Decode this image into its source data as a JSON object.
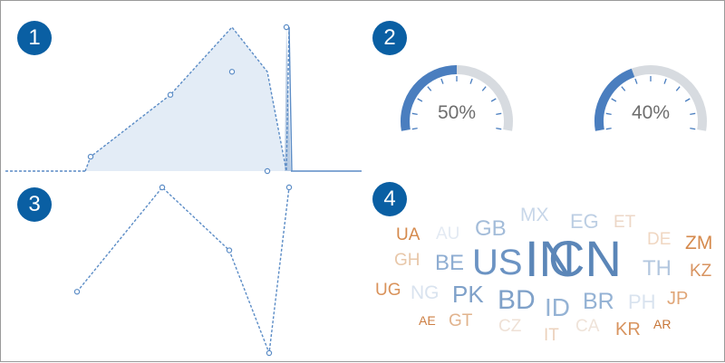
{
  "panels": [
    {
      "badge": "1"
    },
    {
      "badge": "2"
    },
    {
      "badge": "3"
    },
    {
      "badge": "4"
    }
  ],
  "chart_data": [
    {
      "type": "area",
      "series": [
        {
          "values": [
            0,
            0,
            0.1,
            0.53,
            1.0,
            0.69,
            0,
            1.0,
            0
          ]
        }
      ],
      "x": [
        0,
        1,
        2,
        3,
        4,
        5,
        6,
        7,
        8
      ],
      "ylim": [
        0,
        1
      ],
      "grid": false,
      "style": {
        "color": "#5b8cc6",
        "fill": "#e3ecf6",
        "line": "dashed",
        "markers": "hollow-circle"
      }
    },
    {
      "type": "gauge",
      "gauges": [
        {
          "value": 50,
          "label": "50%"
        },
        {
          "value": 40,
          "label": "40%"
        }
      ],
      "range": [
        0,
        100
      ],
      "colors": {
        "fill": "#4a7ebf",
        "track": "#d7dbe0",
        "ticks": "#4a7ebf"
      }
    },
    {
      "type": "line",
      "series": [
        {
          "values": [
            0.37,
            1.0,
            0.62,
            0.0,
            1.0
          ]
        }
      ],
      "x": [
        1,
        2,
        3,
        4,
        5
      ],
      "grid": false,
      "style": {
        "color": "#5b8cc6",
        "line": "dashed",
        "markers": "hollow-circle"
      }
    },
    {
      "type": "wordcloud",
      "words": [
        {
          "text": "IN",
          "color": "#5b86b8"
        },
        {
          "text": "CN",
          "color": "#5b86b8"
        },
        {
          "text": "US",
          "color": "#6b93c3"
        },
        {
          "text": "BD",
          "color": "#7fa1c9"
        },
        {
          "text": "ID",
          "color": "#94b2d4"
        },
        {
          "text": "BR",
          "color": "#94b2d4"
        },
        {
          "text": "PK",
          "color": "#7fa1c9"
        },
        {
          "text": "GB",
          "color": "#a3bcd9"
        },
        {
          "text": "BE",
          "color": "#8eadd2"
        },
        {
          "text": "TH",
          "color": "#b3c7df"
        },
        {
          "text": "EG",
          "color": "#bccee3"
        },
        {
          "text": "MX",
          "color": "#c8d7e9"
        },
        {
          "text": "PH",
          "color": "#d9e3ef"
        },
        {
          "text": "NG",
          "color": "#d9e3ef"
        },
        {
          "text": "AU",
          "color": "#e3eaf3"
        },
        {
          "text": "ET",
          "color": "#edd7c7"
        },
        {
          "text": "DE",
          "color": "#f0d7c2"
        },
        {
          "text": "ZM",
          "color": "#d58a4d"
        },
        {
          "text": "KZ",
          "color": "#d89461"
        },
        {
          "text": "JP",
          "color": "#e0a678"
        },
        {
          "text": "KR",
          "color": "#d8945f"
        },
        {
          "text": "AR",
          "color": "#c77638"
        },
        {
          "text": "UA",
          "color": "#d58a4d"
        },
        {
          "text": "GH",
          "color": "#e8c7a9"
        },
        {
          "text": "UG",
          "color": "#d9925a"
        },
        {
          "text": "AE",
          "color": "#cd7f44"
        },
        {
          "text": "GT",
          "color": "#e1b38d"
        },
        {
          "text": "CZ",
          "color": "#efe1d6"
        },
        {
          "text": "IT",
          "color": "#ecd2bd"
        },
        {
          "text": "CA",
          "color": "#efe3d9"
        }
      ]
    }
  ]
}
